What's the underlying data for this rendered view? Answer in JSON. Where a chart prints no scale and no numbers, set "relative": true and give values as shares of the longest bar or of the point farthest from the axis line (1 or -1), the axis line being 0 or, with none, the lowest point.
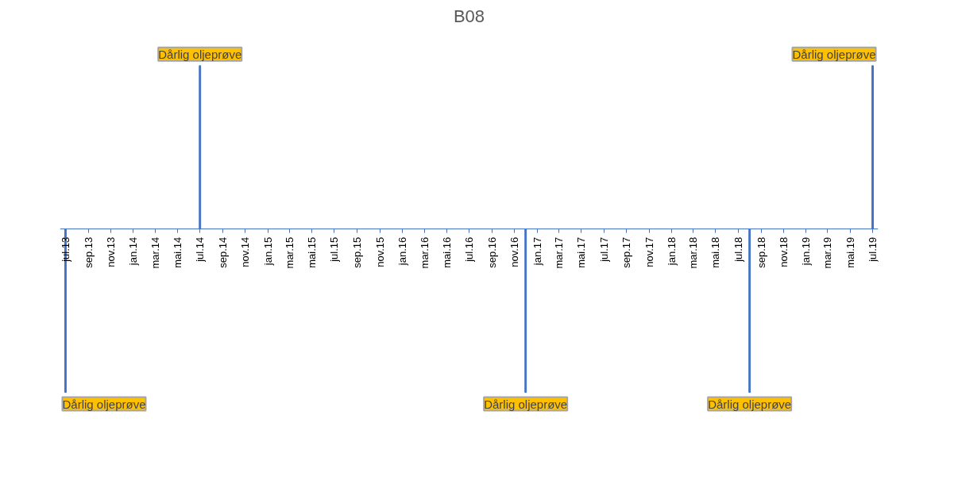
{
  "chart_data": {
    "type": "bar",
    "title": "B08",
    "relative": true,
    "tick_labels": "x",
    "x": [
      "2013-07",
      "2014-07",
      "2016-12",
      "2018-08",
      "2019-07"
    ],
    "series": [
      {
        "color": "#4472c4",
        "values": [
          -1,
          1,
          -1,
          -1,
          1
        ]
      }
    ],
    "xlim": [
      "2013-06-16",
      "2019-07-16"
    ],
    "xticks": [
      {
        "value": "2013-07",
        "label": "jul.13"
      },
      {
        "value": "2013-09",
        "label": "sep.13"
      },
      {
        "value": "2013-11",
        "label": "nov.13"
      },
      {
        "value": "2014-01",
        "label": "jan.14"
      },
      {
        "value": "2014-03",
        "label": "mar.14"
      },
      {
        "value": "2014-05",
        "label": "mai.14"
      },
      {
        "value": "2014-07",
        "label": "jul.14"
      },
      {
        "value": "2014-09",
        "label": "sep.14"
      },
      {
        "value": "2014-11",
        "label": "nov.14"
      },
      {
        "value": "2015-01",
        "label": "jan.15"
      },
      {
        "value": "2015-03",
        "label": "mar.15"
      },
      {
        "value": "2015-05",
        "label": "mai.15"
      },
      {
        "value": "2015-07",
        "label": "jul.15"
      },
      {
        "value": "2015-09",
        "label": "sep.15"
      },
      {
        "value": "2015-11",
        "label": "nov.15"
      },
      {
        "value": "2016-01",
        "label": "jan.16"
      },
      {
        "value": "2016-03",
        "label": "mar.16"
      },
      {
        "value": "2016-05",
        "label": "mai.16"
      },
      {
        "value": "2016-07",
        "label": "jul.16"
      },
      {
        "value": "2016-09",
        "label": "sep.16"
      },
      {
        "value": "2016-11",
        "label": "nov.16"
      },
      {
        "value": "2017-01",
        "label": "jan.17"
      },
      {
        "value": "2017-03",
        "label": "mar.17"
      },
      {
        "value": "2017-05",
        "label": "mai.17"
      },
      {
        "value": "2017-07",
        "label": "jul.17"
      },
      {
        "value": "2017-09",
        "label": "sep.17"
      },
      {
        "value": "2017-11",
        "label": "nov.17"
      },
      {
        "value": "2018-01",
        "label": "jan.18"
      },
      {
        "value": "2018-03",
        "label": "mar.18"
      },
      {
        "value": "2018-05",
        "label": "mai.18"
      },
      {
        "value": "2018-07",
        "label": "jul.18"
      },
      {
        "value": "2018-09",
        "label": "sep.18"
      },
      {
        "value": "2018-11",
        "label": "nov.18"
      },
      {
        "value": "2019-01",
        "label": "jan.19"
      },
      {
        "value": "2019-03",
        "label": "mar.19"
      },
      {
        "value": "2019-05",
        "label": "mai.19"
      },
      {
        "value": "2019-07",
        "label": "jul.19"
      }
    ],
    "annotations": [
      {
        "text": "Dårlig oljeprøve",
        "x": "2013-07",
        "y": -1
      },
      {
        "text": "Dårlig oljeprøve",
        "x": "2014-07",
        "y": 1
      },
      {
        "text": "Dårlig oljeprøve",
        "x": "2016-12",
        "y": -1
      },
      {
        "text": "Dårlig oljeprøve",
        "x": "2018-08",
        "y": -1
      },
      {
        "text": "Dårlig oljeprøve",
        "x": "2019-07",
        "y": 1
      }
    ]
  }
}
